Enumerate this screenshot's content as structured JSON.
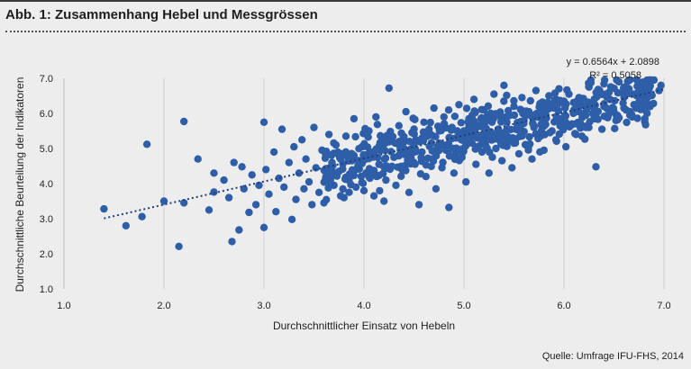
{
  "figure": {
    "title": "Abb. 1: Zusammenhang Hebel und Messgrössen",
    "source": "Quelle: Umfrage IFU-FHS, 2014"
  },
  "chart_data": {
    "type": "scatter",
    "xlabel": "Durchschnittlicher Einsatz von Hebeln",
    "ylabel": "Durchschnittliche Beurteilung der Indikatoren",
    "xlim": [
      1.0,
      7.0
    ],
    "ylim": [
      1.0,
      7.0
    ],
    "xticks": [
      "1.0",
      "2.0",
      "3.0",
      "4.0",
      "5.0",
      "6.0",
      "7.0"
    ],
    "yticks": [
      "1.0",
      "2.0",
      "3.0",
      "4.0",
      "5.0",
      "6.0",
      "7.0"
    ],
    "grid": "vertical",
    "marker_color": "#2e5ea8",
    "trendline": {
      "style": "dotted",
      "slope": 0.6564,
      "intercept": 2.0898,
      "equation": "y = 0.6564x + 2.0898",
      "r2": "R² = 0.5058"
    },
    "points": [
      [
        1.4,
        3.28
      ],
      [
        1.62,
        2.8
      ],
      [
        1.78,
        3.06
      ],
      [
        1.83,
        5.12
      ],
      [
        2.0,
        3.5
      ],
      [
        2.15,
        2.21
      ],
      [
        2.2,
        5.77
      ],
      [
        2.2,
        3.45
      ],
      [
        2.34,
        4.7
      ],
      [
        2.45,
        3.25
      ],
      [
        2.5,
        4.3
      ],
      [
        2.5,
        3.76
      ],
      [
        2.6,
        4.1
      ],
      [
        2.65,
        3.6
      ],
      [
        2.68,
        2.35
      ],
      [
        2.7,
        4.6
      ],
      [
        2.75,
        2.68
      ],
      [
        2.78,
        4.48
      ],
      [
        2.8,
        3.85
      ],
      [
        2.85,
        3.18
      ],
      [
        2.88,
        4.25
      ],
      [
        2.92,
        3.4
      ],
      [
        2.95,
        3.95
      ],
      [
        3.0,
        5.75
      ],
      [
        3.0,
        2.75
      ],
      [
        3.02,
        4.4
      ],
      [
        3.05,
        3.7
      ],
      [
        3.1,
        4.9
      ],
      [
        3.12,
        3.2
      ],
      [
        3.15,
        4.15
      ],
      [
        3.18,
        5.55
      ],
      [
        3.2,
        3.9
      ],
      [
        3.25,
        4.6
      ],
      [
        3.28,
        2.98
      ],
      [
        3.3,
        5.05
      ],
      [
        3.32,
        3.55
      ],
      [
        3.35,
        4.3
      ],
      [
        3.38,
        5.25
      ],
      [
        3.4,
        3.85
      ],
      [
        3.42,
        4.7
      ],
      [
        3.45,
        4.05
      ],
      [
        3.48,
        3.4
      ],
      [
        3.5,
        5.6
      ],
      [
        3.52,
        4.45
      ],
      [
        3.55,
        3.75
      ],
      [
        3.58,
        4.95
      ],
      [
        3.6,
        3.45
      ],
      [
        3.62,
        4.2
      ],
      [
        3.65,
        5.4
      ],
      [
        3.68,
        4.6
      ],
      [
        3.7,
        3.95
      ],
      [
        3.72,
        5.1
      ],
      [
        3.75,
        4.35
      ],
      [
        3.78,
        4.85
      ],
      [
        3.8,
        3.6
      ],
      [
        3.82,
        5.35
      ],
      [
        3.85,
        4.1
      ],
      [
        3.88,
        4.65
      ],
      [
        3.9,
        5.85
      ],
      [
        3.92,
        3.9
      ],
      [
        3.95,
        4.45
      ],
      [
        3.98,
        5.05
      ],
      [
        4.0,
        3.8
      ],
      [
        4.02,
        4.3
      ],
      [
        4.05,
        5.5
      ],
      [
        4.08,
        4.85
      ],
      [
        4.1,
        3.65
      ],
      [
        4.12,
        5.9
      ],
      [
        4.15,
        4.55
      ],
      [
        4.18,
        5.2
      ],
      [
        4.2,
        3.5
      ],
      [
        4.22,
        4.1
      ],
      [
        4.25,
        6.72
      ],
      [
        4.28,
        5.35
      ],
      [
        4.3,
        4.75
      ],
      [
        4.32,
        3.95
      ],
      [
        4.35,
        5.65
      ],
      [
        4.38,
        4.4
      ],
      [
        4.4,
        5.0
      ],
      [
        4.42,
        6.05
      ],
      [
        4.45,
        3.75
      ],
      [
        4.48,
        5.45
      ],
      [
        4.5,
        4.6
      ],
      [
        4.52,
        5.25
      ],
      [
        4.55,
        3.4
      ],
      [
        4.58,
        4.9
      ],
      [
        4.6,
        5.75
      ],
      [
        4.62,
        4.2
      ],
      [
        4.65,
        5.55
      ],
      [
        4.68,
        4.7
      ],
      [
        4.7,
        6.15
      ],
      [
        4.72,
        3.85
      ],
      [
        4.75,
        5.1
      ],
      [
        4.78,
        4.45
      ],
      [
        4.8,
        5.9
      ],
      [
        4.82,
        4.95
      ],
      [
        4.85,
        3.32
      ],
      [
        4.88,
        5.6
      ],
      [
        4.9,
        4.3
      ],
      [
        4.92,
        5.3
      ],
      [
        4.95,
        6.25
      ],
      [
        4.98,
        4.75
      ],
      [
        5.0,
        5.5
      ],
      [
        5.02,
        4.05
      ],
      [
        5.05,
        5.85
      ],
      [
        5.08,
        5.15
      ],
      [
        5.1,
        6.4
      ],
      [
        5.12,
        4.55
      ],
      [
        5.15,
        5.65
      ],
      [
        5.18,
        4.9
      ],
      [
        5.2,
        6.1
      ],
      [
        5.22,
        5.35
      ],
      [
        5.25,
        4.3
      ],
      [
        5.28,
        5.75
      ],
      [
        5.3,
        6.55
      ],
      [
        5.32,
        5.0
      ],
      [
        5.35,
        5.45
      ],
      [
        5.38,
        4.65
      ],
      [
        5.4,
        6.8
      ],
      [
        5.42,
        5.9
      ],
      [
        5.45,
        5.2
      ],
      [
        5.48,
        4.45
      ],
      [
        5.5,
        6.2
      ],
      [
        5.52,
        5.55
      ],
      [
        5.55,
        4.85
      ],
      [
        5.58,
        6.45
      ],
      [
        5.6,
        5.8
      ],
      [
        5.62,
        5.1
      ],
      [
        5.65,
        6.05
      ],
      [
        5.68,
        4.7
      ],
      [
        5.7,
        5.6
      ],
      [
        5.72,
        6.65
      ],
      [
        5.75,
        5.35
      ],
      [
        5.78,
        6.25
      ],
      [
        5.8,
        4.95
      ],
      [
        5.82,
        5.95
      ],
      [
        5.85,
        6.5
      ],
      [
        5.88,
        5.5
      ],
      [
        5.9,
        6.15
      ],
      [
        5.92,
        5.25
      ],
      [
        5.95,
        6.7
      ],
      [
        5.98,
        5.85
      ],
      [
        6.0,
        6.35
      ],
      [
        6.02,
        5.05
      ],
      [
        6.05,
        6.55
      ],
      [
        6.08,
        5.7
      ],
      [
        6.1,
        6.1
      ],
      [
        6.12,
        5.4
      ],
      [
        6.15,
        6.45
      ],
      [
        6.2,
        6.0
      ],
      [
        6.22,
        5.6
      ],
      [
        6.25,
        6.75
      ],
      [
        6.28,
        6.3
      ],
      [
        6.3,
        5.85
      ],
      [
        6.32,
        4.48
      ],
      [
        6.35,
        6.55
      ],
      [
        6.38,
        5.55
      ],
      [
        6.4,
        6.2
      ],
      [
        6.45,
        6.6
      ],
      [
        6.5,
        6.05
      ],
      [
        6.52,
        5.8
      ],
      [
        6.55,
        6.9
      ],
      [
        6.6,
        6.45
      ],
      [
        6.62,
        6.1
      ],
      [
        6.65,
        6.7
      ],
      [
        6.7,
        6.55
      ],
      [
        6.75,
        6.85
      ],
      [
        6.8,
        6.5
      ],
      [
        6.9,
        6.95
      ],
      [
        6.95,
        6.65
      ],
      [
        6.97,
        6.8
      ],
      [
        6.7,
        6.25
      ],
      [
        6.42,
        6.55
      ],
      [
        6.18,
        5.35
      ],
      [
        5.5,
        5.15
      ],
      [
        5.3,
        5.95
      ]
    ]
  }
}
